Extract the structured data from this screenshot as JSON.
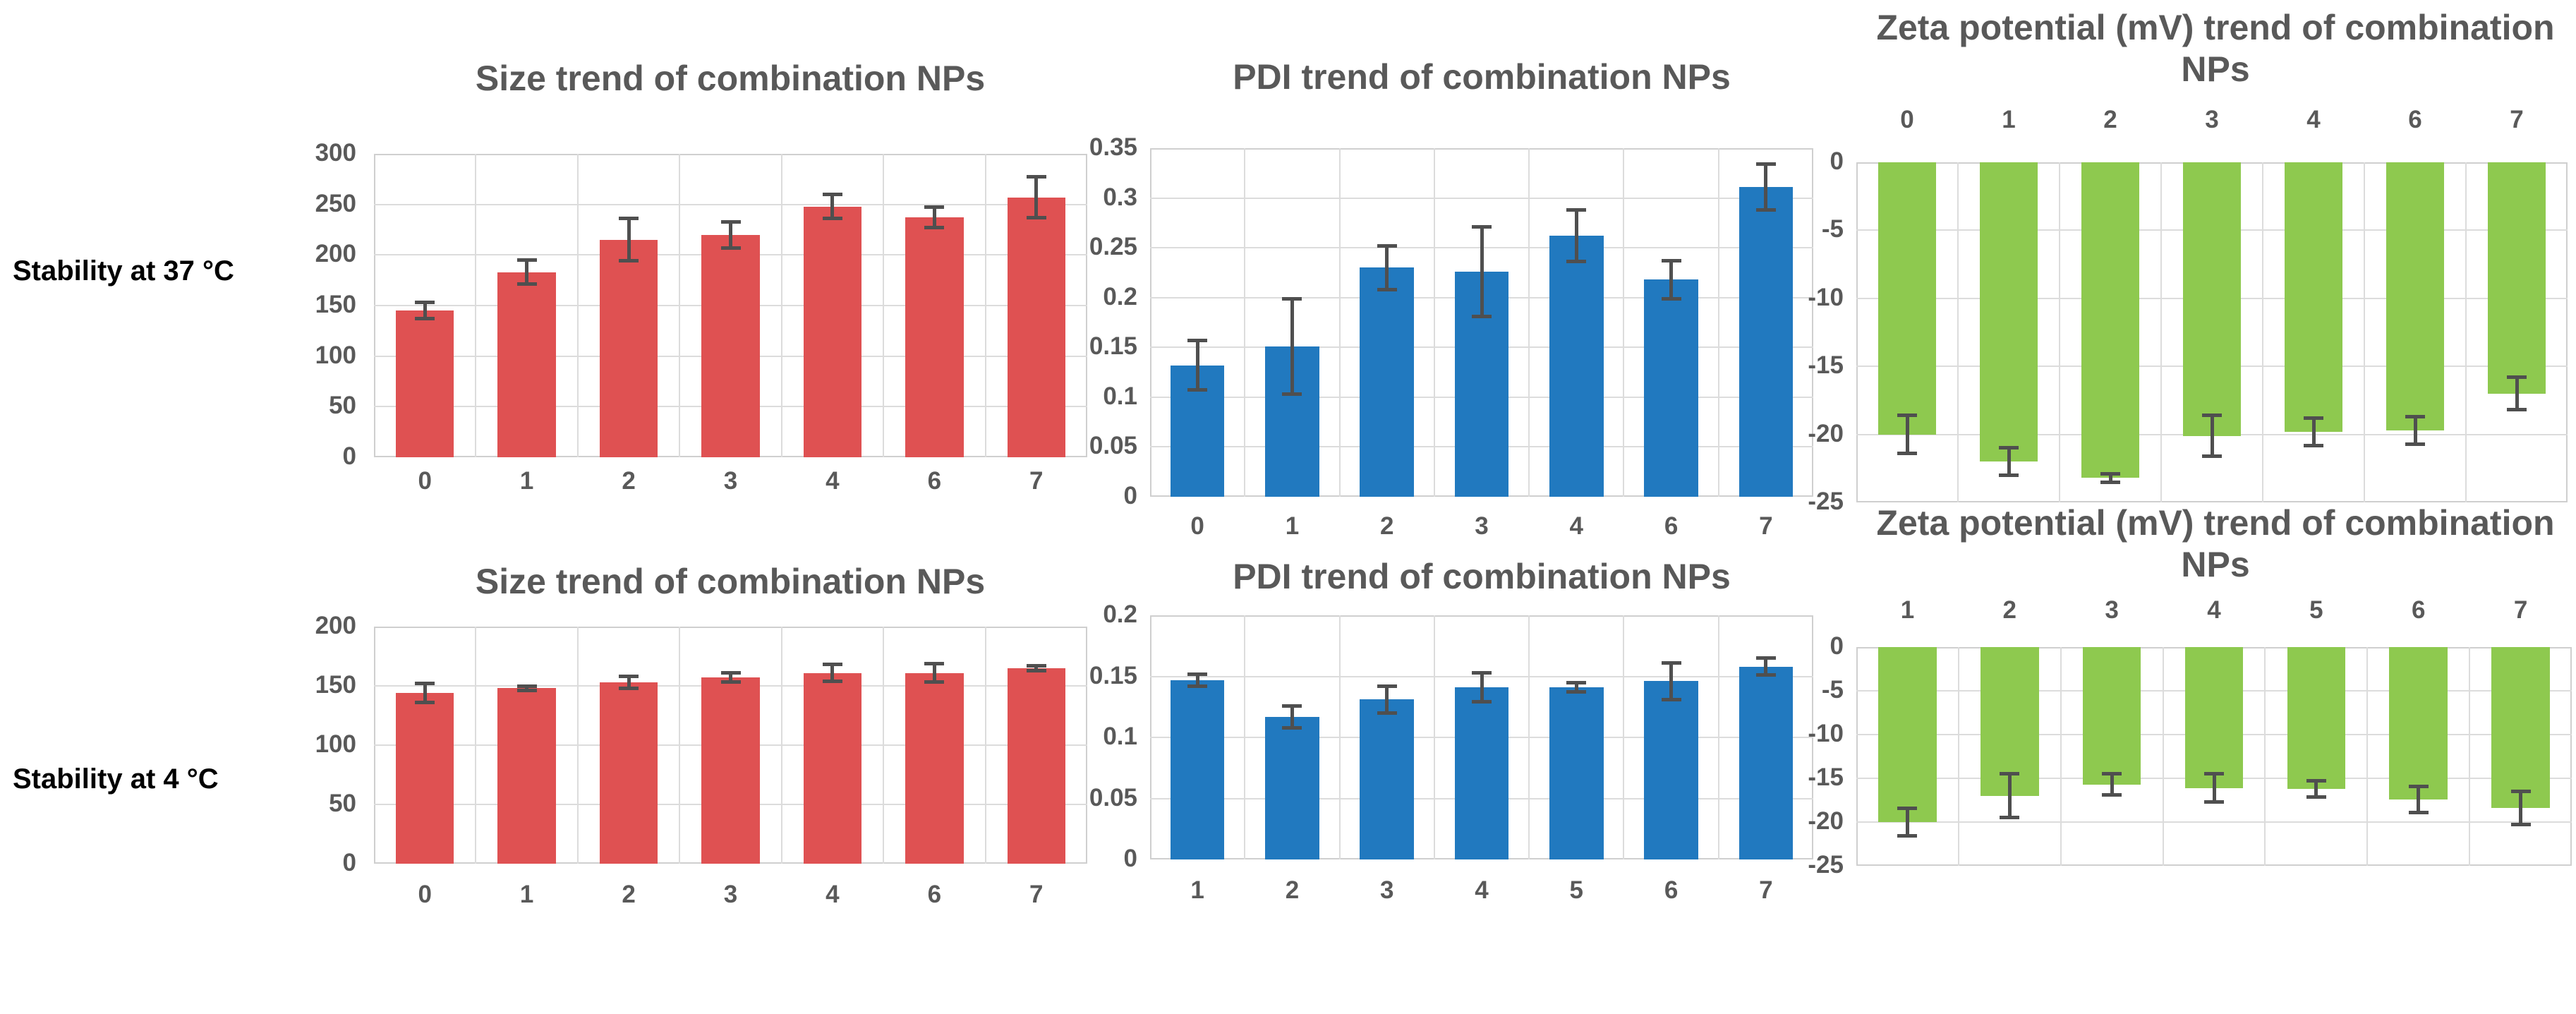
{
  "page": {
    "background": "#ffffff"
  },
  "figure": {
    "row_labels": [
      {
        "label": "Stability at 37 °C"
      },
      {
        "label": "Stability at 4 °C"
      }
    ]
  },
  "colors": {
    "size_bar": "#df5152",
    "pdi_bar": "#2179bf",
    "zeta_bar": "#8ec94f",
    "chart_text": "#595959",
    "row_label_text": "#000000",
    "gridline": "#dcdcdc",
    "plot_border": "#cfcfcf",
    "error_bar": "#4f4f4f"
  },
  "chart_data": [
    {
      "id": "size-37c",
      "row_label": "Stability at 37 °C",
      "type": "bar",
      "direction": "up",
      "title": "Size trend of combination  NPs",
      "categories": [
        "0",
        "1",
        "2",
        "3",
        "4",
        "6",
        "7"
      ],
      "values": [
        145,
        183,
        215,
        220,
        248,
        237,
        257
      ],
      "errors": [
        8,
        12,
        21,
        13,
        12,
        10,
        20
      ],
      "ylim": [
        0,
        300
      ],
      "ytick_step": 50,
      "yticks": [
        "300",
        "250",
        "200",
        "150",
        "100",
        "50",
        "0"
      ],
      "color_key": "size_bar",
      "grid": true,
      "legend": null
    },
    {
      "id": "pdi-37c",
      "row_label": "Stability at 37 °C",
      "type": "bar",
      "direction": "up",
      "title": "PDI trend of combination NPs",
      "categories": [
        "0",
        "1",
        "2",
        "3",
        "4",
        "6",
        "7"
      ],
      "values": [
        0.132,
        0.151,
        0.23,
        0.226,
        0.262,
        0.218,
        0.311
      ],
      "errors": [
        0.025,
        0.048,
        0.022,
        0.045,
        0.026,
        0.019,
        0.023
      ],
      "ylim": [
        0,
        0.35
      ],
      "ytick_step": 0.05,
      "yticks": [
        "0.35",
        "0.3",
        "0.25",
        "0.2",
        "0.15",
        "0.1",
        "0.05",
        "0"
      ],
      "color_key": "pdi_bar",
      "grid": true,
      "legend": null
    },
    {
      "id": "zeta-37c",
      "row_label": "Stability at 37 °C",
      "type": "bar",
      "direction": "down",
      "title": "Zeta potential (mV) trend of combination NPs",
      "categories": [
        "0",
        "1",
        "2",
        "3",
        "4",
        "6",
        "7"
      ],
      "values": [
        -20,
        -22,
        -23.2,
        -20.1,
        -19.8,
        -19.7,
        -17
      ],
      "errors": [
        1.4,
        1.0,
        0.3,
        1.5,
        1.0,
        1.0,
        1.2
      ],
      "ylim": [
        -25,
        0
      ],
      "ytick_step": 5,
      "yticks": [
        "0",
        "-5",
        "-10",
        "-15",
        "-20",
        "-25"
      ],
      "color_key": "zeta_bar",
      "grid": true,
      "legend": null
    },
    {
      "id": "size-4c",
      "row_label": "Stability at 4 °C",
      "type": "bar",
      "direction": "up",
      "title": "Size trend of combination NPs",
      "categories": [
        "0",
        "1",
        "2",
        "3",
        "4",
        "6",
        "7"
      ],
      "values": [
        144,
        148,
        153,
        157,
        161,
        161,
        165
      ],
      "errors": [
        8,
        2,
        5,
        4,
        7,
        8,
        2
      ],
      "ylim": [
        0,
        200
      ],
      "ytick_step": 50,
      "yticks": [
        "200",
        "150",
        "100",
        "50",
        "0"
      ],
      "color_key": "size_bar",
      "grid": true,
      "legend": null
    },
    {
      "id": "pdi-4c",
      "row_label": "Stability at 4 °C",
      "type": "bar",
      "direction": "up",
      "title": "PDI trend of combination NPs",
      "categories": [
        "1",
        "2",
        "3",
        "4",
        "5",
        "6",
        "7"
      ],
      "values": [
        0.147,
        0.117,
        0.131,
        0.141,
        0.141,
        0.146,
        0.158
      ],
      "errors": [
        0.005,
        0.009,
        0.011,
        0.012,
        0.004,
        0.015,
        0.007
      ],
      "ylim": [
        0,
        0.2
      ],
      "ytick_step": 0.05,
      "yticks": [
        "0.2",
        "0.15",
        "0.1",
        "0.05",
        "0"
      ],
      "color_key": "pdi_bar",
      "grid": true,
      "legend": null
    },
    {
      "id": "zeta-4c",
      "row_label": "Stability at 4 °C",
      "type": "bar",
      "direction": "down",
      "title": "Zeta potential (mV) trend of combination NPs",
      "categories": [
        "1",
        "2",
        "3",
        "4",
        "5",
        "6",
        "7"
      ],
      "values": [
        -20,
        -17,
        -15.7,
        -16.1,
        -16.2,
        -17.4,
        -18.4
      ],
      "errors": [
        1.6,
        2.5,
        1.2,
        1.6,
        0.9,
        1.5,
        1.9
      ],
      "ylim": [
        -25,
        0
      ],
      "ytick_step": 5,
      "yticks": [
        "0",
        "-5",
        "-10",
        "-15",
        "-20",
        "-25"
      ],
      "color_key": "zeta_bar",
      "grid": true,
      "legend": null
    }
  ]
}
